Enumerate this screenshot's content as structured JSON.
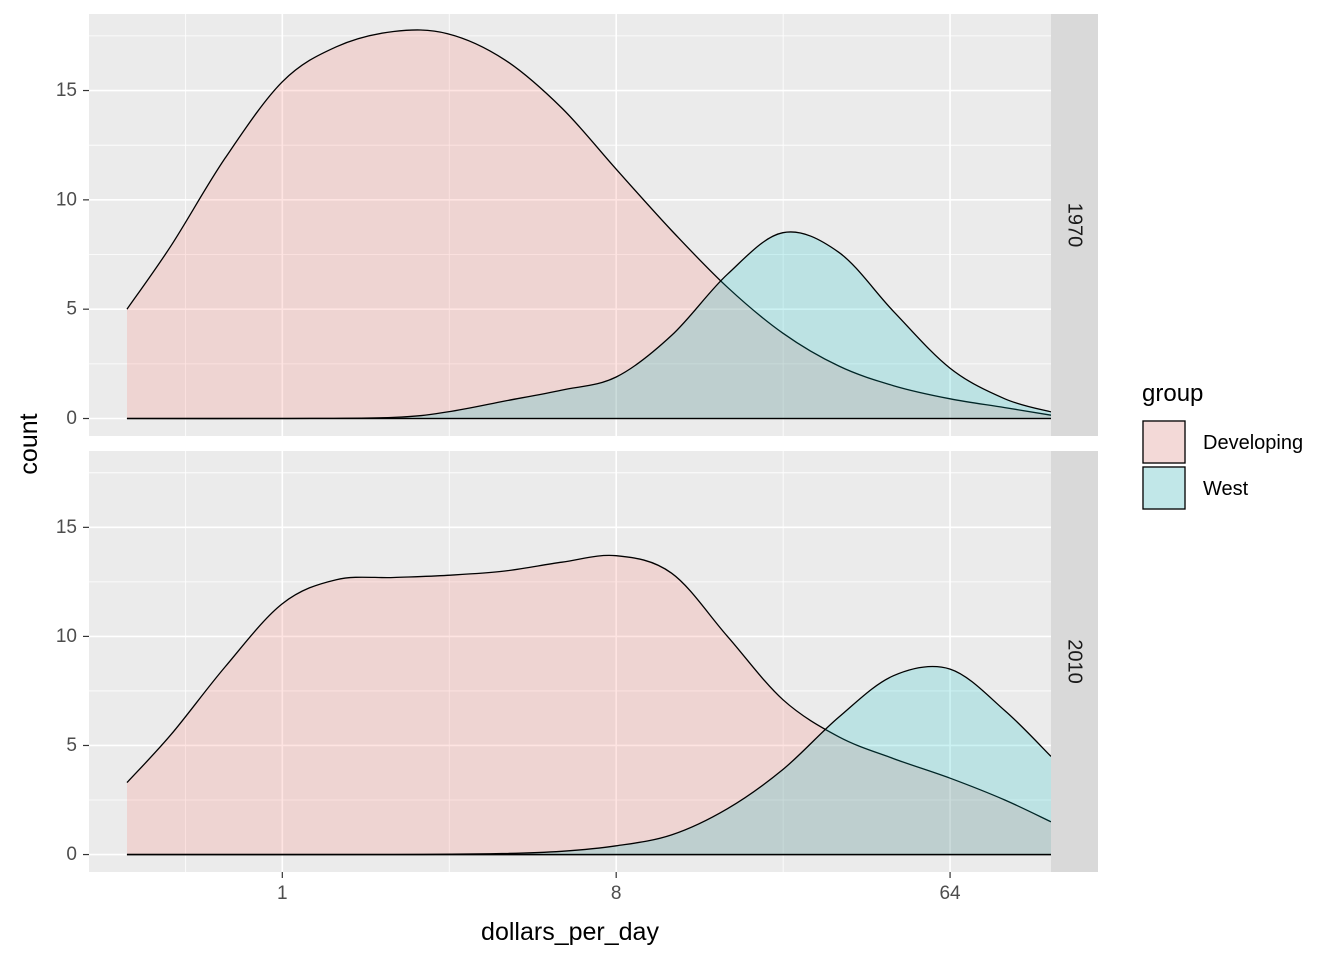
{
  "chart_data": {
    "type": "area",
    "subtype": "faceted stacked density (fill=group, alpha 0.2, log2 x axis)",
    "xlabel": "dollars_per_day",
    "ylabel": "count",
    "x_scale": "log2",
    "xlim": [
      0.3,
      120
    ],
    "x_ticks": [
      1,
      8,
      64
    ],
    "x_tick_labels": [
      "1",
      "8",
      "64"
    ],
    "ylim": [
      -0.8,
      18.5
    ],
    "y_ticks": [
      0,
      5,
      10,
      15
    ],
    "y_tick_labels": [
      "0",
      "5",
      "10",
      "15"
    ],
    "grid": true,
    "legend": {
      "title": "group",
      "position": "right",
      "items": [
        {
          "label": "Developing",
          "color": "#F8766D"
        },
        {
          "label": "West",
          "color": "#00BFC4"
        }
      ]
    },
    "facets": [
      {
        "label": "1970",
        "series": [
          {
            "name": "Developing",
            "x": [
              0.38,
              0.5,
              0.7,
              1.0,
              1.4,
              2.0,
              2.8,
              4.0,
              5.7,
              8.0,
              11.3,
              16,
              22.6,
              32,
              45,
              64,
              90,
              120
            ],
            "y": [
              5.0,
              7.9,
              11.9,
              15.4,
              17.0,
              17.7,
              17.6,
              16.4,
              14.2,
              11.4,
              8.6,
              6.0,
              3.9,
              2.4,
              1.5,
              0.9,
              0.5,
              0.15
            ]
          },
          {
            "name": "West",
            "x": [
              0.38,
              1.0,
              2.0,
              2.8,
              4.0,
              5.7,
              8.0,
              11.3,
              16,
              22.6,
              32,
              45,
              64,
              90,
              120
            ],
            "y": [
              0.0,
              0.0,
              0.05,
              0.3,
              0.8,
              1.3,
              1.9,
              3.8,
              6.6,
              8.5,
              7.6,
              4.9,
              2.3,
              0.9,
              0.3
            ]
          }
        ]
      },
      {
        "label": "2010",
        "series": [
          {
            "name": "Developing",
            "x": [
              0.38,
              0.5,
              0.7,
              1.0,
              1.4,
              2.0,
              2.8,
              4.0,
              5.7,
              8.0,
              11.3,
              16,
              22.6,
              32,
              45,
              64,
              90,
              120
            ],
            "y": [
              3.3,
              5.5,
              8.6,
              11.5,
              12.6,
              12.7,
              12.8,
              13.0,
              13.4,
              13.7,
              12.9,
              10.0,
              7.1,
              5.4,
              4.4,
              3.5,
              2.5,
              1.5
            ]
          },
          {
            "name": "West",
            "x": [
              0.38,
              2.0,
              4.0,
              5.7,
              8.0,
              11.3,
              16,
              22.6,
              32,
              45,
              64,
              90,
              120
            ],
            "y": [
              0.0,
              0.0,
              0.05,
              0.15,
              0.4,
              0.9,
              2.1,
              3.9,
              6.3,
              8.2,
              8.5,
              6.6,
              4.5
            ]
          }
        ]
      }
    ]
  }
}
